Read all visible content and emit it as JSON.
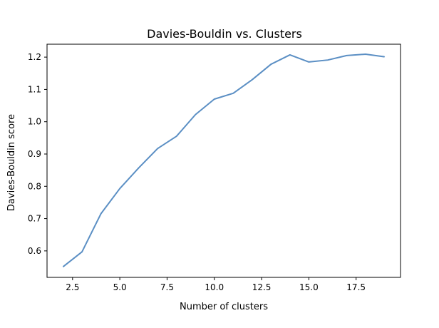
{
  "chart_data": {
    "type": "line",
    "title": "Davies-Bouldin vs. Clusters",
    "xlabel": "Number of clusters",
    "ylabel": "Davies-Bouldin score",
    "xlim": [
      1.15,
      19.85
    ],
    "ylim": [
      0.518,
      1.24
    ],
    "xticks": [
      2.5,
      5.0,
      7.5,
      10.0,
      12.5,
      15.0,
      17.5
    ],
    "xtick_labels": [
      "2.5",
      "5.0",
      "7.5",
      "10.0",
      "12.5",
      "15.0",
      "17.5"
    ],
    "yticks": [
      0.6,
      0.7,
      0.8,
      0.9,
      1.0,
      1.1,
      1.2
    ],
    "ytick_labels": [
      "0.6",
      "0.7",
      "0.8",
      "0.9",
      "1.0",
      "1.1",
      "1.2"
    ],
    "grid": false,
    "series": [
      {
        "color": "#5b8fc4",
        "x": [
          2,
          3,
          4,
          5,
          6,
          7,
          8,
          9,
          10,
          11,
          12,
          13,
          14,
          15,
          16,
          17,
          18,
          19
        ],
        "y": [
          0.551,
          0.597,
          0.715,
          0.793,
          0.857,
          0.917,
          0.955,
          1.022,
          1.07,
          1.088,
          1.13,
          1.178,
          1.207,
          1.185,
          1.191,
          1.205,
          1.209,
          1.201
        ]
      }
    ]
  }
}
